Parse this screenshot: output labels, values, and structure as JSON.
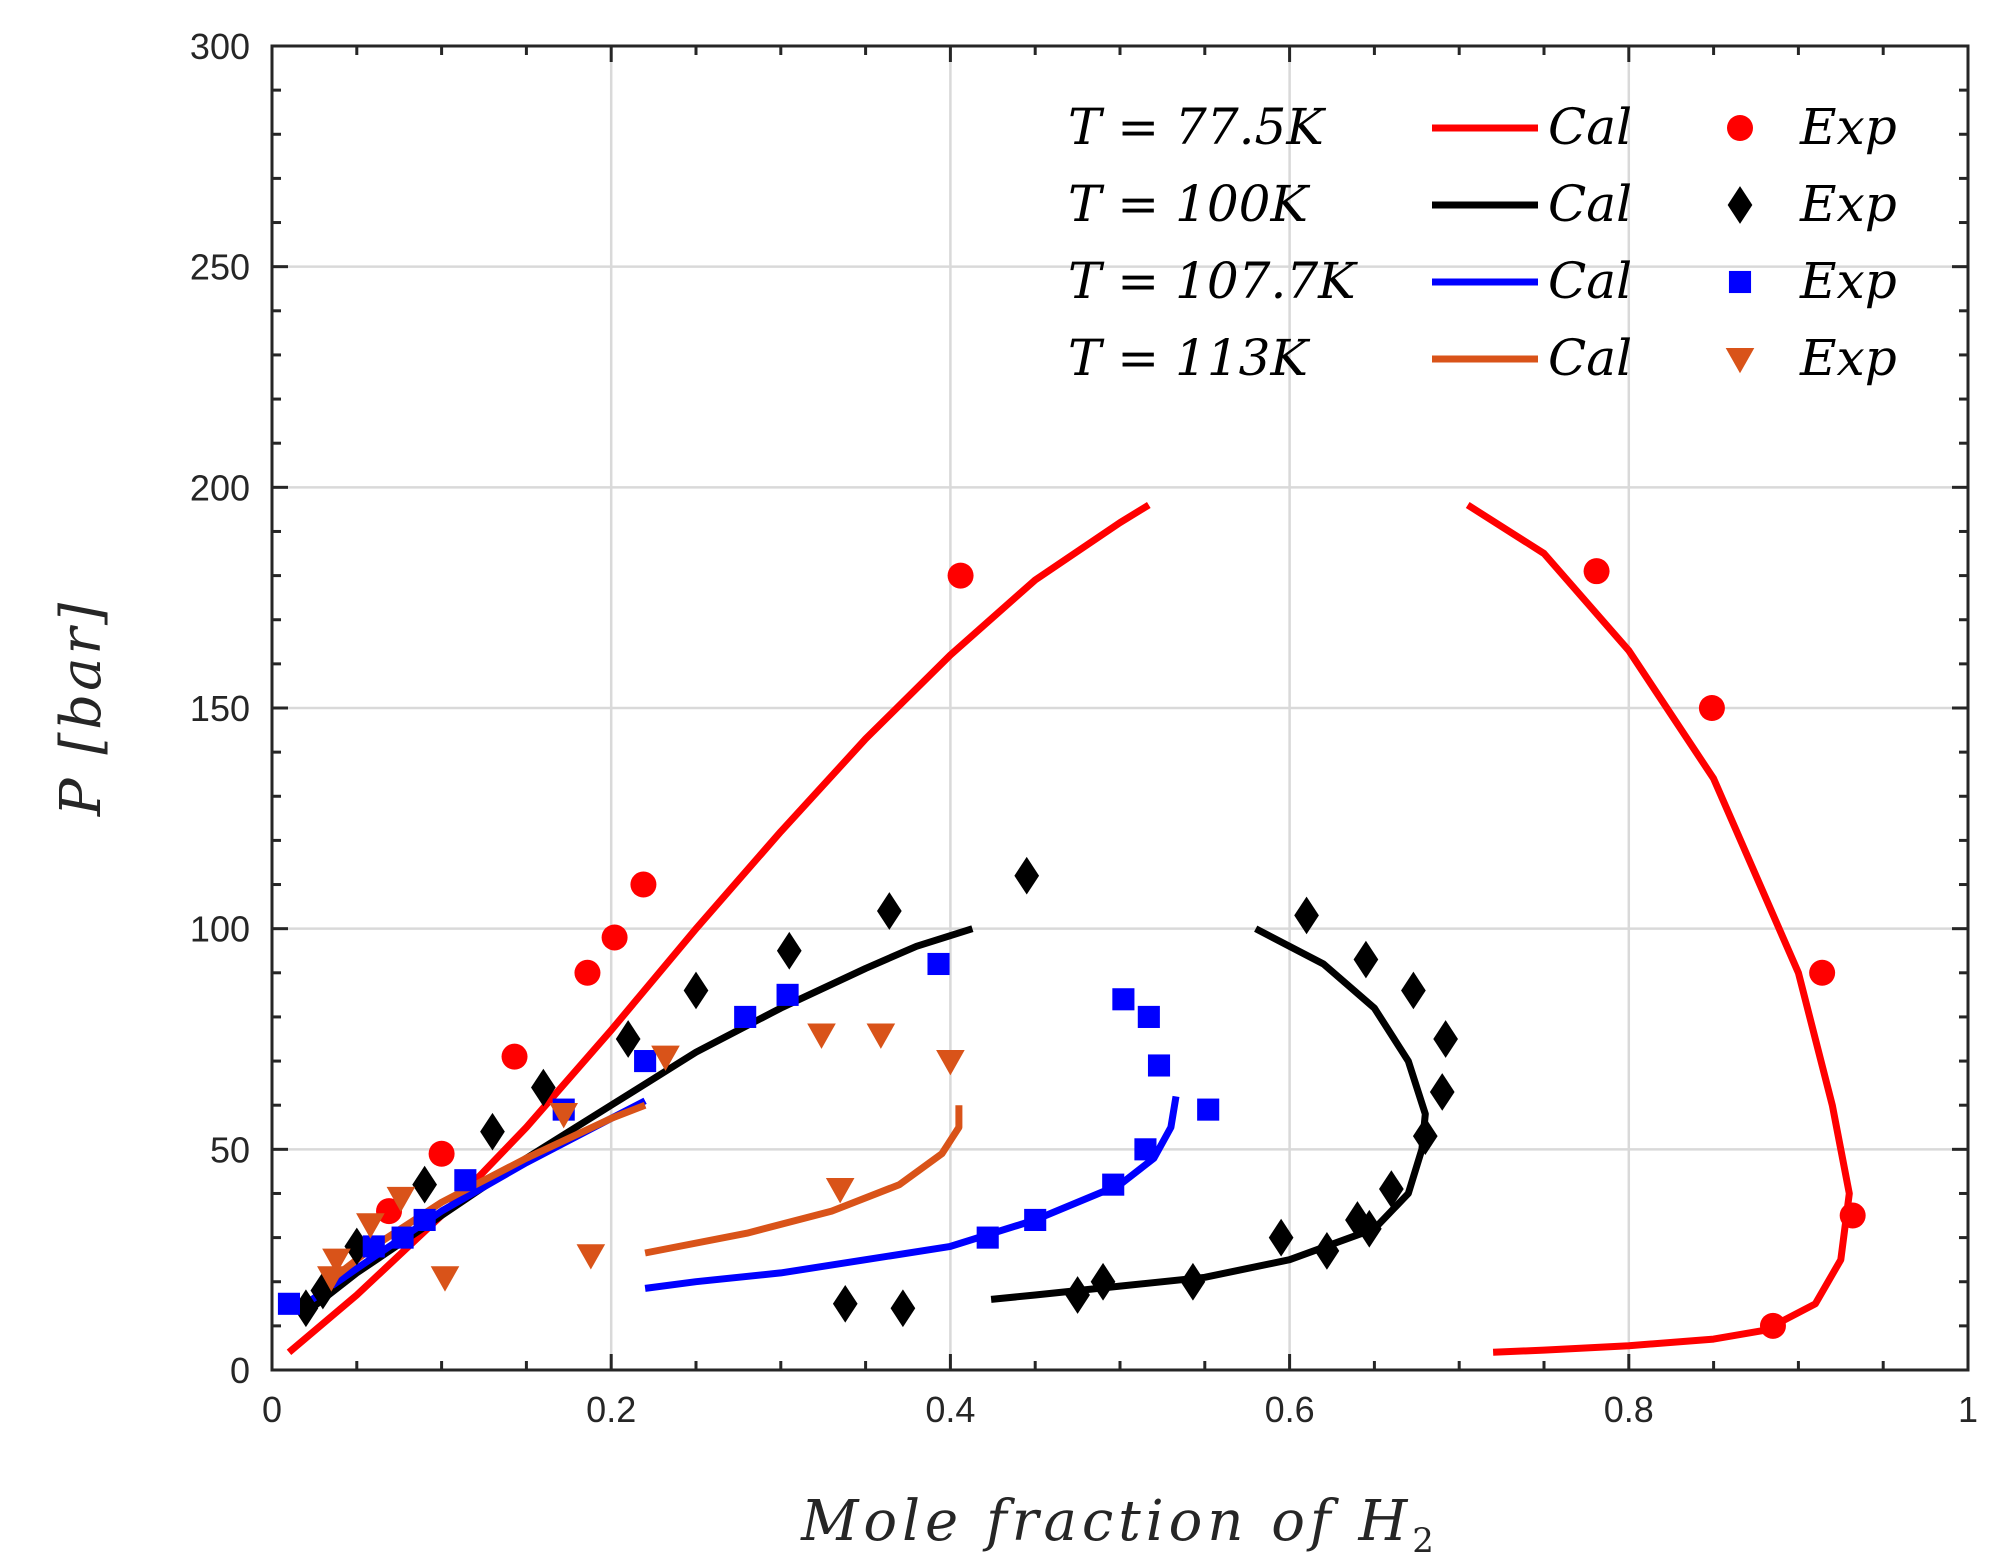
{
  "chart_data": {
    "type": "line+scatter",
    "xlabel_main": "Mole fraction of H",
    "xlabel_sub": "2",
    "ylabel": "P [bar]",
    "xlim": [
      0,
      1
    ],
    "ylim": [
      0,
      300
    ],
    "xticks": [
      0,
      0.2,
      0.4,
      0.6,
      0.8,
      1
    ],
    "xtick_labels": [
      "0",
      "0.2",
      "0.4",
      "0.6",
      "0.8",
      "1"
    ],
    "yticks": [
      0,
      50,
      100,
      150,
      200,
      250,
      300
    ],
    "ytick_labels": [
      "0",
      "50",
      "100",
      "150",
      "200",
      "250",
      "300"
    ],
    "grid": true,
    "legend_position": "top-right",
    "series": [
      {
        "name": "T = 77.5K",
        "color": "#ff0000",
        "marker": "circle",
        "legend_temp": "T = 77.5K",
        "legend_cal": "Cal",
        "legend_exp": "Exp",
        "cal_branches": [
          [
            [
              0.01,
              4
            ],
            [
              0.05,
              17
            ],
            [
              0.1,
              35
            ],
            [
              0.15,
              55
            ],
            [
              0.2,
              77
            ],
            [
              0.25,
              100
            ],
            [
              0.3,
              122
            ],
            [
              0.35,
              143
            ],
            [
              0.4,
              162
            ],
            [
              0.45,
              179
            ],
            [
              0.5,
              192
            ],
            [
              0.517,
              196
            ]
          ],
          [
            [
              0.705,
              196
            ],
            [
              0.75,
              185
            ],
            [
              0.8,
              163
            ],
            [
              0.85,
              134
            ],
            [
              0.9,
              90
            ],
            [
              0.92,
              60
            ],
            [
              0.93,
              40
            ],
            [
              0.925,
              25
            ],
            [
              0.91,
              15
            ],
            [
              0.88,
              9
            ],
            [
              0.85,
              7
            ],
            [
              0.8,
              5.5
            ],
            [
              0.75,
              4.5
            ],
            [
              0.72,
              4
            ]
          ]
        ],
        "exp": [
          [
            0.069,
            36
          ],
          [
            0.1,
            49
          ],
          [
            0.143,
            71
          ],
          [
            0.186,
            90
          ],
          [
            0.202,
            98
          ],
          [
            0.219,
            110
          ],
          [
            0.406,
            180
          ],
          [
            0.781,
            181
          ],
          [
            0.849,
            150
          ],
          [
            0.914,
            90
          ],
          [
            0.932,
            35
          ],
          [
            0.885,
            10
          ]
        ]
      },
      {
        "name": "T = 100K",
        "color": "#000000",
        "marker": "diamond",
        "legend_temp": "T = 100K",
        "legend_cal": "Cal",
        "legend_exp": "Exp",
        "cal_branches": [
          [
            [
              0.02,
              13
            ],
            [
              0.05,
              22
            ],
            [
              0.1,
              35
            ],
            [
              0.15,
              48
            ],
            [
              0.2,
              60
            ],
            [
              0.25,
              72
            ],
            [
              0.3,
              82
            ],
            [
              0.35,
              91
            ],
            [
              0.38,
              96
            ],
            [
              0.413,
              100
            ]
          ],
          [
            [
              0.58,
              100
            ],
            [
              0.62,
              92
            ],
            [
              0.65,
              82
            ],
            [
              0.67,
              70
            ],
            [
              0.68,
              58
            ],
            [
              0.678,
              50
            ],
            [
              0.67,
              40
            ],
            [
              0.65,
              32
            ],
            [
              0.6,
              25
            ],
            [
              0.55,
              21
            ],
            [
              0.5,
              19
            ],
            [
              0.45,
              17
            ],
            [
              0.424,
              16
            ]
          ]
        ],
        "exp": [
          [
            0.02,
            14
          ],
          [
            0.03,
            18
          ],
          [
            0.05,
            28
          ],
          [
            0.09,
            42
          ],
          [
            0.13,
            54
          ],
          [
            0.16,
            64
          ],
          [
            0.21,
            75
          ],
          [
            0.25,
            86
          ],
          [
            0.305,
            95
          ],
          [
            0.364,
            104
          ],
          [
            0.445,
            112
          ],
          [
            0.338,
            15
          ],
          [
            0.372,
            14
          ],
          [
            0.475,
            17
          ],
          [
            0.49,
            20
          ],
          [
            0.543,
            20
          ],
          [
            0.595,
            30
          ],
          [
            0.622,
            27
          ],
          [
            0.64,
            34
          ],
          [
            0.647,
            32
          ],
          [
            0.66,
            41
          ],
          [
            0.68,
            53
          ],
          [
            0.69,
            63
          ],
          [
            0.692,
            75
          ],
          [
            0.673,
            86
          ],
          [
            0.645,
            93
          ],
          [
            0.61,
            103
          ]
        ]
      },
      {
        "name": "T = 107.7K",
        "color": "#0000ff",
        "marker": "square",
        "legend_temp": "T = 107.7K",
        "legend_cal": "Cal",
        "legend_exp": "Exp",
        "cal_branches": [
          [
            [
              0.02,
              15
            ],
            [
              0.05,
              23
            ],
            [
              0.1,
              36
            ],
            [
              0.15,
              47
            ],
            [
              0.2,
              57
            ],
            [
              0.22,
              61
            ]
          ],
          [
            [
              0.533,
              62
            ],
            [
              0.53,
              55
            ],
            [
              0.52,
              48
            ],
            [
              0.5,
              42
            ],
            [
              0.45,
              34
            ],
            [
              0.4,
              28
            ],
            [
              0.35,
              25
            ],
            [
              0.3,
              22
            ],
            [
              0.25,
              20
            ],
            [
              0.22,
              18.5
            ]
          ]
        ],
        "exp": [
          [
            0.01,
            15
          ],
          [
            0.06,
            28
          ],
          [
            0.077,
            30
          ],
          [
            0.09,
            34
          ],
          [
            0.114,
            43
          ],
          [
            0.172,
            59
          ],
          [
            0.22,
            70
          ],
          [
            0.279,
            80
          ],
          [
            0.304,
            85
          ],
          [
            0.393,
            92
          ],
          [
            0.502,
            84
          ],
          [
            0.517,
            80
          ],
          [
            0.523,
            69
          ],
          [
            0.552,
            59
          ],
          [
            0.515,
            50
          ],
          [
            0.496,
            42
          ],
          [
            0.45,
            34
          ],
          [
            0.422,
            30
          ]
        ]
      },
      {
        "name": "T = 113K",
        "color": "#d95319",
        "marker": "triangle-down",
        "legend_temp": "T = 113K",
        "legend_cal": "Cal",
        "legend_exp": "Exp",
        "cal_branches": [
          [
            [
              0.03,
              19
            ],
            [
              0.06,
              28
            ],
            [
              0.1,
              38
            ],
            [
              0.15,
              48
            ],
            [
              0.2,
              57
            ],
            [
              0.22,
              60
            ]
          ],
          [
            [
              0.405,
              60
            ],
            [
              0.405,
              55
            ],
            [
              0.395,
              49
            ],
            [
              0.37,
              42
            ],
            [
              0.33,
              36
            ],
            [
              0.28,
              31
            ],
            [
              0.22,
              26.5
            ]
          ]
        ],
        "exp": [
          [
            0.035,
            21
          ],
          [
            0.038,
            25
          ],
          [
            0.058,
            33
          ],
          [
            0.076,
            39
          ],
          [
            0.102,
            21
          ],
          [
            0.172,
            58
          ],
          [
            0.188,
            26
          ],
          [
            0.232,
            71
          ],
          [
            0.324,
            76
          ],
          [
            0.359,
            76
          ],
          [
            0.4,
            70
          ],
          [
            0.335,
            41
          ]
        ]
      }
    ]
  }
}
